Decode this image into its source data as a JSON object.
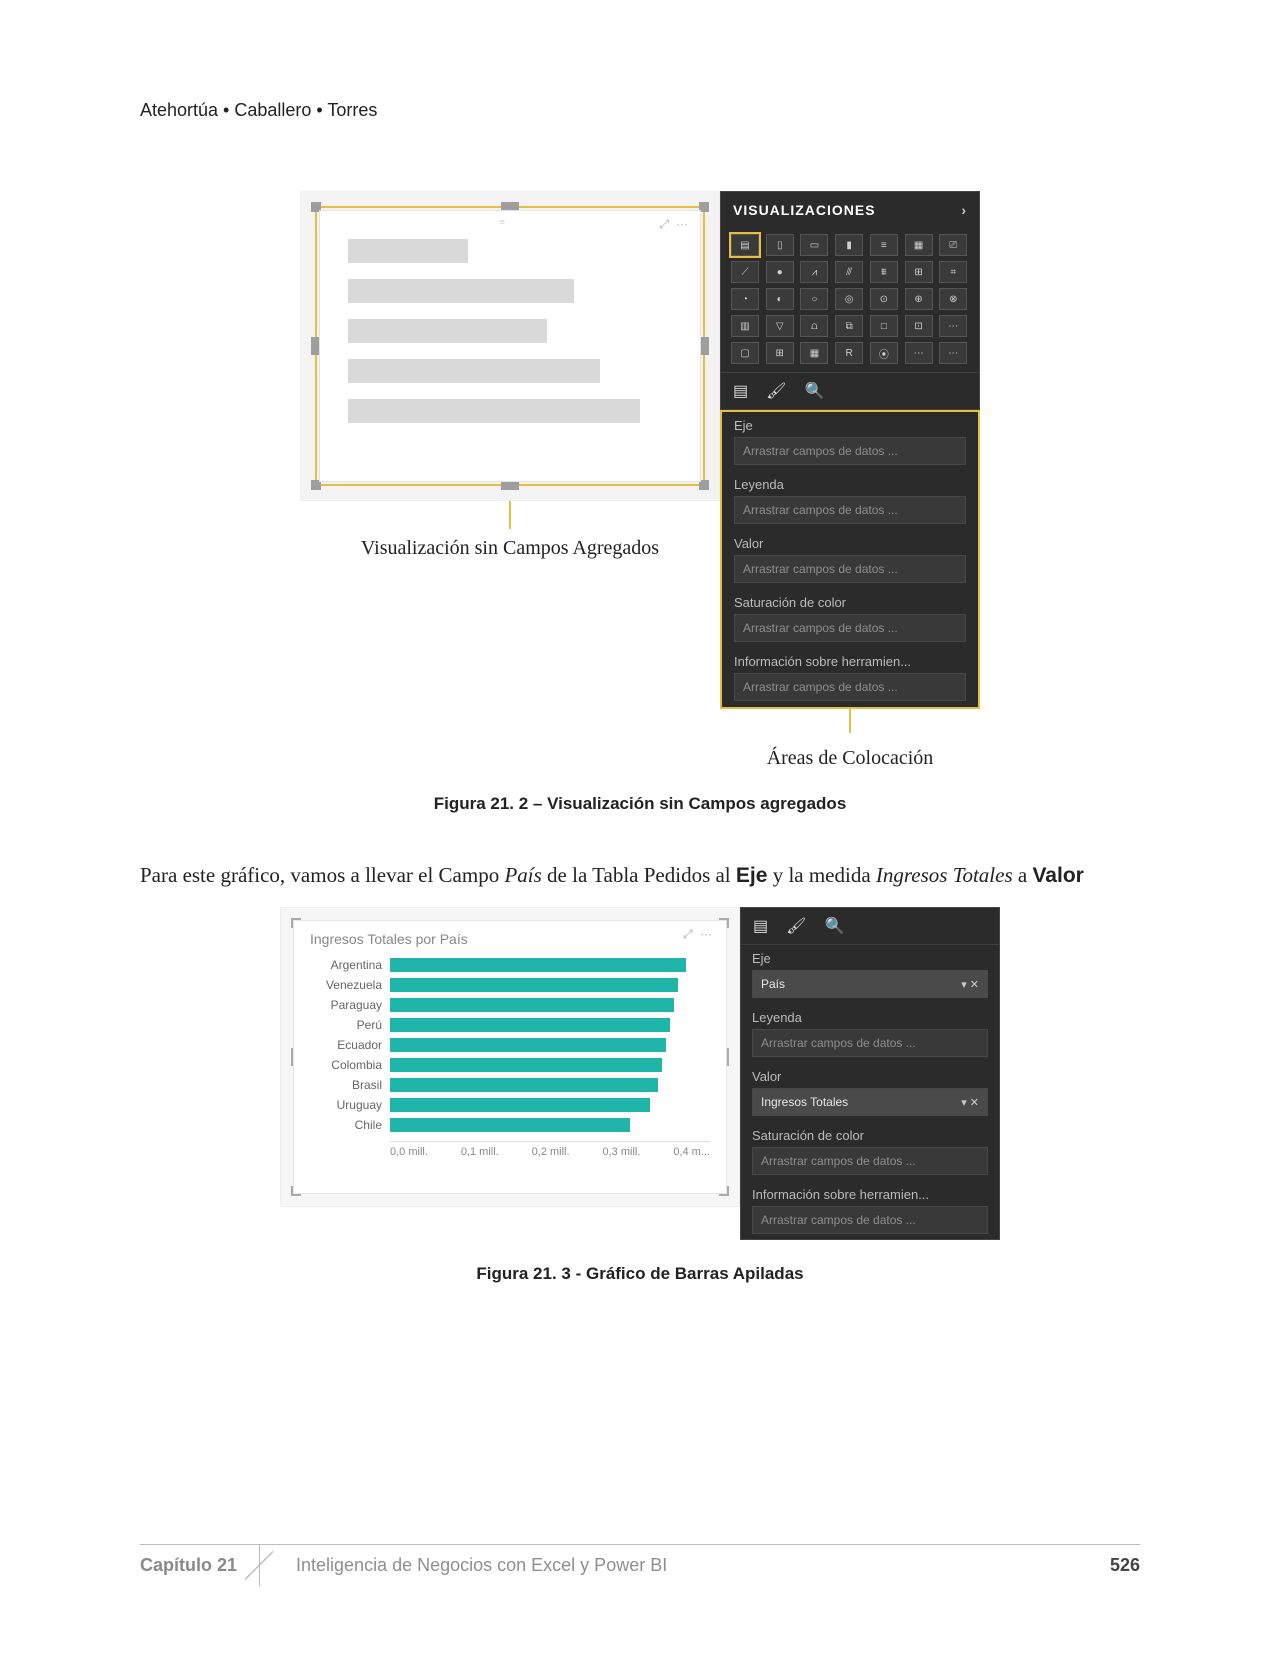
{
  "header": {
    "authors": "Atehortúa • Caballero • Torres"
  },
  "fig1": {
    "placeholder": {
      "bar_widths_pct": [
        36,
        68,
        60,
        76,
        88
      ]
    },
    "label_left": "Visualización sin Campos Agregados",
    "label_right": "Áreas de Colocación",
    "caption": "Figura 21. 2 – Visualización sin Campos agregados",
    "viz_panel": {
      "title": "VISUALIZACIONES",
      "fields": [
        {
          "label": "Eje",
          "well": "Arrastrar campos de datos ...",
          "filled": false
        },
        {
          "label": "Leyenda",
          "well": "Arrastrar campos de datos ...",
          "filled": false
        },
        {
          "label": "Valor",
          "well": "Arrastrar campos de datos ...",
          "filled": false
        },
        {
          "label": "Saturación de color",
          "well": "Arrastrar campos de datos ...",
          "filled": false
        },
        {
          "label": "Información sobre herramien...",
          "well": "Arrastrar campos de datos ...",
          "filled": false
        }
      ]
    }
  },
  "paragraph": {
    "pre": "Para este gráfico, vamos a llevar el Campo ",
    "em1": "País",
    "mid1": " de la Tabla Pedidos al ",
    "b1": "Eje",
    "mid2": " y la medida ",
    "em2": "Ingresos Totales",
    "mid3": " a ",
    "b2": "Valor"
  },
  "fig2": {
    "chart": {
      "title": "Ingresos Totales por País",
      "bar_color": "#1fb5a8",
      "xlim": [
        0,
        0.4
      ],
      "xticks": [
        "0,0 mill.",
        "0,1 mill.",
        "0,2 mill.",
        "0,3 mill.",
        "0,4 m..."
      ],
      "series": [
        {
          "label": "Argentina",
          "value": 0.37
        },
        {
          "label": "Venezuela",
          "value": 0.36
        },
        {
          "label": "Paraguay",
          "value": 0.355
        },
        {
          "label": "Perú",
          "value": 0.35
        },
        {
          "label": "Ecuador",
          "value": 0.345
        },
        {
          "label": "Colombia",
          "value": 0.34
        },
        {
          "label": "Brasil",
          "value": 0.335
        },
        {
          "label": "Uruguay",
          "value": 0.325
        },
        {
          "label": "Chile",
          "value": 0.3
        }
      ]
    },
    "viz_panel": {
      "fields": [
        {
          "label": "Eje",
          "well": "País",
          "filled": true
        },
        {
          "label": "Leyenda",
          "well": "Arrastrar campos de datos ...",
          "filled": false
        },
        {
          "label": "Valor",
          "well": "Ingresos Totales",
          "filled": true
        },
        {
          "label": "Saturación de color",
          "well": "Arrastrar campos de datos ...",
          "filled": false
        },
        {
          "label": "Información sobre herramien...",
          "well": "Arrastrar campos de datos ...",
          "filled": false
        }
      ]
    },
    "caption": "Figura 21. 3 -  Gráfico de Barras Apiladas"
  },
  "footer": {
    "chapter": "Capítulo 21",
    "title": "Inteligencia de Negocios con Excel y Power BI",
    "page": "526"
  },
  "viz_icons": [
    "▤",
    "▯",
    "▭",
    "▮",
    "≡",
    "▦",
    "⎚",
    "⟋",
    "⦁",
    "⩘",
    "⫻",
    "⩩",
    "⊞",
    "⌗",
    "◔",
    "◐",
    "○",
    "◎",
    "⊙",
    "⊕",
    "⊗",
    "▥",
    "▽",
    "⩍",
    "⧉",
    "□",
    "⊡",
    "⋯",
    "▢",
    "⊞",
    "▦",
    "R",
    "⦿",
    "⋯",
    "⋯"
  ]
}
